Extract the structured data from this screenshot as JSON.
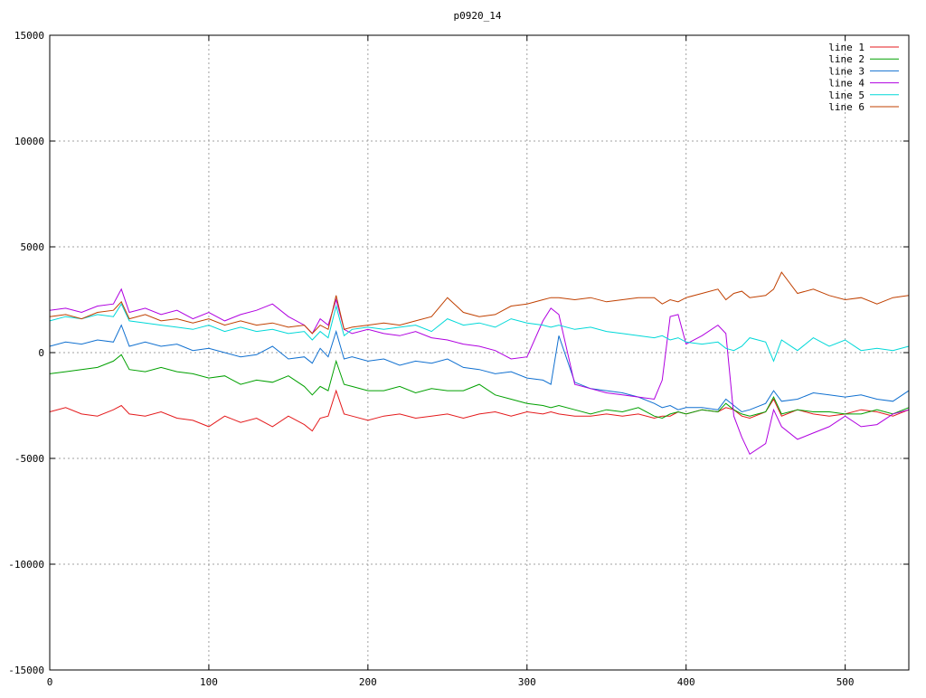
{
  "chart_data": {
    "type": "line",
    "title": "p0920_14",
    "xlabel": "",
    "ylabel": "",
    "xlim": [
      0,
      540
    ],
    "ylim": [
      -15000,
      15000
    ],
    "x_ticks": [
      0,
      100,
      200,
      300,
      400,
      500
    ],
    "y_ticks": [
      -15000,
      -10000,
      -5000,
      0,
      5000,
      10000,
      15000
    ],
    "grid": true,
    "legend_position": "top-right",
    "x": [
      0,
      10,
      20,
      30,
      40,
      45,
      50,
      60,
      70,
      80,
      90,
      100,
      110,
      120,
      130,
      140,
      150,
      160,
      165,
      170,
      175,
      180,
      185,
      190,
      200,
      210,
      220,
      230,
      240,
      250,
      260,
      270,
      280,
      290,
      300,
      310,
      315,
      320,
      330,
      340,
      350,
      360,
      370,
      380,
      385,
      390,
      395,
      400,
      410,
      420,
      425,
      430,
      435,
      440,
      450,
      455,
      460,
      470,
      480,
      490,
      500,
      510,
      520,
      530,
      540
    ],
    "series": [
      {
        "name": "line 1",
        "color": "#e41a1c",
        "values": [
          -2800,
          -2600,
          -2900,
          -3000,
          -2700,
          -2500,
          -2900,
          -3000,
          -2800,
          -3100,
          -3200,
          -3500,
          -3000,
          -3300,
          -3100,
          -3500,
          -3000,
          -3400,
          -3700,
          -3100,
          -3000,
          -1800,
          -2900,
          -3000,
          -3200,
          -3000,
          -2900,
          -3100,
          -3000,
          -2900,
          -3100,
          -2900,
          -2800,
          -3000,
          -2800,
          -2900,
          -2800,
          -2900,
          -3000,
          -3000,
          -2900,
          -3000,
          -2900,
          -3100,
          -3000,
          -3000,
          -2800,
          -2900,
          -2700,
          -2800,
          -2600,
          -2700,
          -3000,
          -3100,
          -2800,
          -2200,
          -3000,
          -2700,
          -2900,
          -3000,
          -2900,
          -2700,
          -2800,
          -3000,
          -2700
        ]
      },
      {
        "name": "line 2",
        "color": "#00a000",
        "values": [
          -1000,
          -900,
          -800,
          -700,
          -400,
          -100,
          -800,
          -900,
          -700,
          -900,
          -1000,
          -1200,
          -1100,
          -1500,
          -1300,
          -1400,
          -1100,
          -1600,
          -2000,
          -1600,
          -1800,
          -400,
          -1500,
          -1600,
          -1800,
          -1800,
          -1600,
          -1900,
          -1700,
          -1800,
          -1800,
          -1500,
          -2000,
          -2200,
          -2400,
          -2500,
          -2600,
          -2500,
          -2700,
          -2900,
          -2700,
          -2800,
          -2600,
          -3000,
          -3100,
          -2900,
          -2800,
          -2900,
          -2700,
          -2800,
          -2400,
          -2700,
          -2900,
          -3000,
          -2800,
          -2100,
          -2900,
          -2700,
          -2800,
          -2800,
          -2900,
          -2900,
          -2700,
          -2900,
          -2600
        ]
      },
      {
        "name": "line 3",
        "color": "#1070d0",
        "values": [
          300,
          500,
          400,
          600,
          500,
          1300,
          300,
          500,
          300,
          400,
          100,
          200,
          0,
          -200,
          -100,
          300,
          -300,
          -200,
          -500,
          200,
          -200,
          1000,
          -300,
          -200,
          -400,
          -300,
          -600,
          -400,
          -500,
          -300,
          -700,
          -800,
          -1000,
          -900,
          -1200,
          -1300,
          -1500,
          800,
          -1400,
          -1700,
          -1800,
          -1900,
          -2100,
          -2400,
          -2600,
          -2500,
          -2700,
          -2600,
          -2600,
          -2700,
          -2200,
          -2500,
          -2800,
          -2700,
          -2400,
          -1800,
          -2300,
          -2200,
          -1900,
          -2000,
          -2100,
          -2000,
          -2200,
          -2300,
          -1800
        ]
      },
      {
        "name": "line 4",
        "color": "#b000e0",
        "values": [
          2000,
          2100,
          1900,
          2200,
          2300,
          3000,
          1900,
          2100,
          1800,
          2000,
          1600,
          1900,
          1500,
          1800,
          2000,
          2300,
          1700,
          1300,
          900,
          1600,
          1300,
          2500,
          1100,
          900,
          1100,
          900,
          800,
          1000,
          700,
          600,
          400,
          300,
          100,
          -300,
          -200,
          1500,
          2100,
          1800,
          -1500,
          -1700,
          -1900,
          -2000,
          -2100,
          -2200,
          -1300,
          1700,
          1800,
          400,
          800,
          1300,
          900,
          -3000,
          -4000,
          -4800,
          -4300,
          -2700,
          -3500,
          -4100,
          -3800,
          -3500,
          -3000,
          -3500,
          -3400,
          -2900,
          -2700
        ]
      },
      {
        "name": "line 5",
        "color": "#00d8d8",
        "values": [
          1500,
          1700,
          1600,
          1800,
          1700,
          2300,
          1500,
          1400,
          1300,
          1200,
          1100,
          1300,
          1000,
          1200,
          1000,
          1100,
          900,
          1000,
          600,
          1000,
          700,
          2200,
          800,
          1100,
          1200,
          1100,
          1200,
          1300,
          1000,
          1600,
          1300,
          1400,
          1200,
          1600,
          1400,
          1300,
          1200,
          1300,
          1100,
          1200,
          1000,
          900,
          800,
          700,
          800,
          600,
          700,
          500,
          400,
          500,
          200,
          100,
          300,
          700,
          500,
          -400,
          600,
          100,
          700,
          300,
          600,
          100,
          200,
          100,
          300
        ]
      },
      {
        "name": "line 6",
        "color": "#c04000",
        "values": [
          1700,
          1800,
          1600,
          1900,
          2000,
          2400,
          1600,
          1800,
          1500,
          1600,
          1400,
          1600,
          1300,
          1500,
          1300,
          1400,
          1200,
          1300,
          900,
          1300,
          1100,
          2700,
          1100,
          1200,
          1300,
          1400,
          1300,
          1500,
          1700,
          2600,
          1900,
          1700,
          1800,
          2200,
          2300,
          2500,
          2600,
          2600,
          2500,
          2600,
          2400,
          2500,
          2600,
          2600,
          2300,
          2500,
          2400,
          2600,
          2800,
          3000,
          2500,
          2800,
          2900,
          2600,
          2700,
          3000,
          3800,
          2800,
          3000,
          2700,
          2500,
          2600,
          2300,
          2600,
          2700
        ]
      }
    ]
  }
}
